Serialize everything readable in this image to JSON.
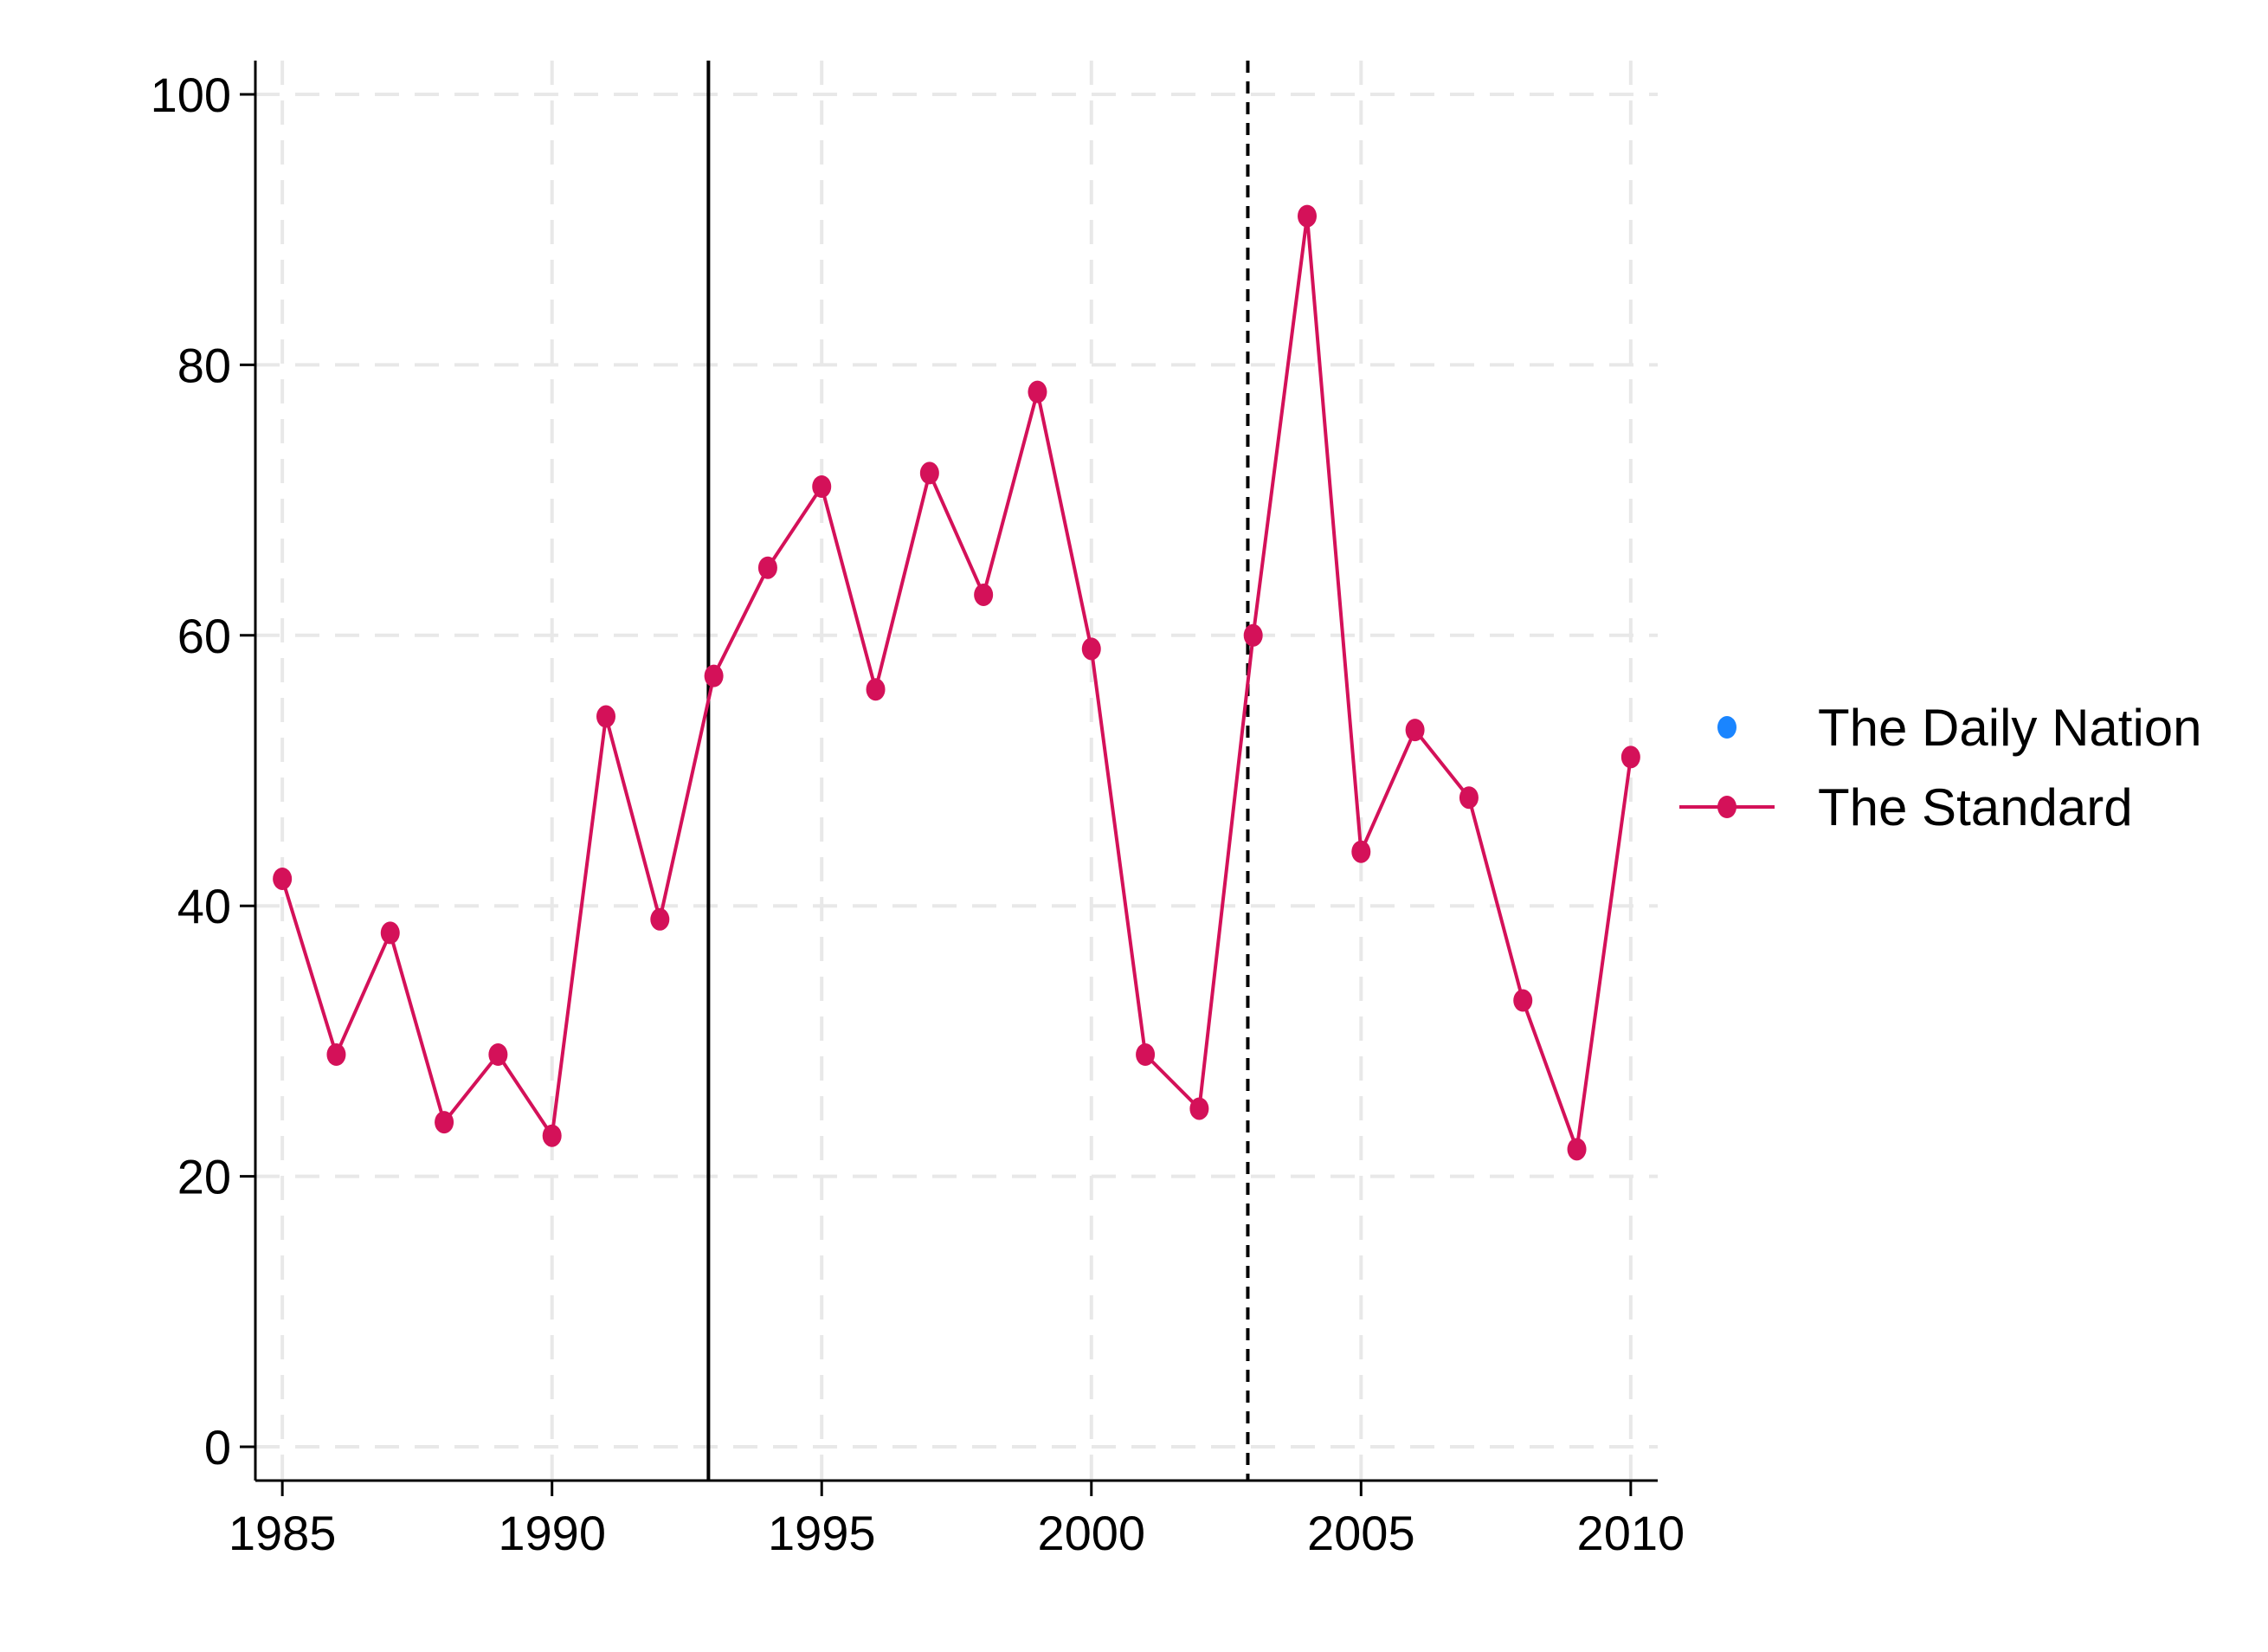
{
  "chart_data": {
    "type": "line",
    "title": "",
    "xlabel": "",
    "ylabel": "",
    "xlim": [
      1984.5,
      2010.5
    ],
    "ylim": [
      -2.5,
      102.5
    ],
    "xticks": [
      1985,
      1990,
      1995,
      2000,
      2005,
      2010
    ],
    "yticks": [
      0,
      20,
      40,
      60,
      80,
      100
    ],
    "grid": true,
    "legend_position": "right",
    "reference_lines": [
      {
        "x": 1992.9,
        "style": "solid"
      },
      {
        "x": 2002.9,
        "style": "dashed"
      }
    ],
    "series": [
      {
        "name": "The Daily Nation",
        "color": "#1a85ff",
        "marker": "dot",
        "line": false,
        "x": [],
        "y": []
      },
      {
        "name": "The Standard",
        "color": "#d41159",
        "marker": "dot",
        "line": true,
        "x": [
          1985,
          1986,
          1987,
          1988,
          1989,
          1990,
          1991,
          1992,
          1993,
          1994,
          1995,
          1996,
          1997,
          1998,
          1999,
          2000,
          2001,
          2002,
          2003,
          2004,
          2005,
          2006,
          2007,
          2008,
          2009,
          2010
        ],
        "y": [
          42,
          29,
          38,
          24,
          29,
          23,
          54,
          39,
          57,
          65,
          71,
          56,
          72,
          63,
          78,
          59,
          29,
          25,
          60,
          91,
          44,
          53,
          48,
          33,
          22,
          51
        ]
      }
    ]
  }
}
